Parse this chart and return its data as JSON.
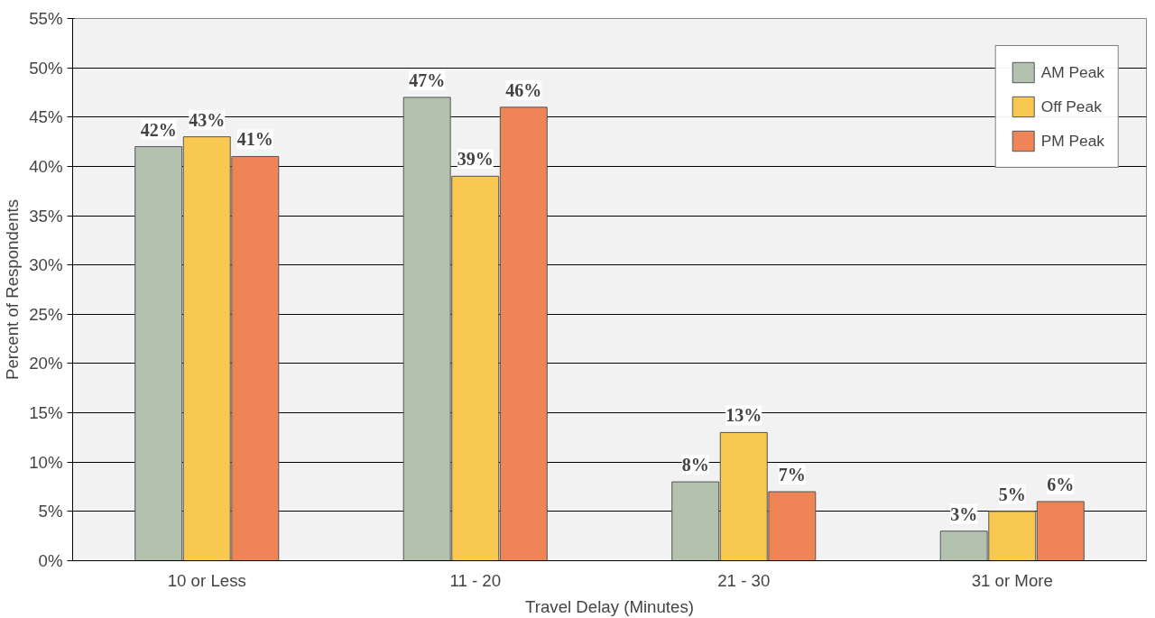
{
  "chart_data": {
    "type": "bar",
    "xlabel": "Travel Delay (Minutes)",
    "ylabel": "Percent of Respondents",
    "categories": [
      "10 or Less",
      "11 - 20",
      "21 - 30",
      "31 or More"
    ],
    "series": [
      {
        "name": "AM Peak",
        "color": "#b3c1af",
        "values": [
          42,
          47,
          8,
          3
        ],
        "value_labels": [
          "42%",
          "47%",
          "8%",
          "3%"
        ]
      },
      {
        "name": "Off Peak",
        "color": "#f8c851",
        "values": [
          43,
          39,
          13,
          5
        ],
        "value_labels": [
          "43%",
          "39%",
          "13%",
          "5%"
        ]
      },
      {
        "name": "PM Peak",
        "color": "#ef8456",
        "values": [
          41,
          46,
          7,
          6
        ],
        "value_labels": [
          "41%",
          "46%",
          "7%",
          "6%"
        ]
      }
    ],
    "ylim": [
      0,
      55
    ],
    "yticks": [
      {
        "value": 0,
        "label": "0%"
      },
      {
        "value": 5,
        "label": "5%"
      },
      {
        "value": 10,
        "label": "10%"
      },
      {
        "value": 15,
        "label": "15%"
      },
      {
        "value": 20,
        "label": "20%"
      },
      {
        "value": 25,
        "label": "25%"
      },
      {
        "value": 30,
        "label": "30%"
      },
      {
        "value": 35,
        "label": "35%"
      },
      {
        "value": 40,
        "label": "40%"
      },
      {
        "value": 45,
        "label": "45%"
      },
      {
        "value": 50,
        "label": "50%"
      },
      {
        "value": 55,
        "label": "55%"
      }
    ],
    "grid": "y",
    "legend": "top right"
  }
}
